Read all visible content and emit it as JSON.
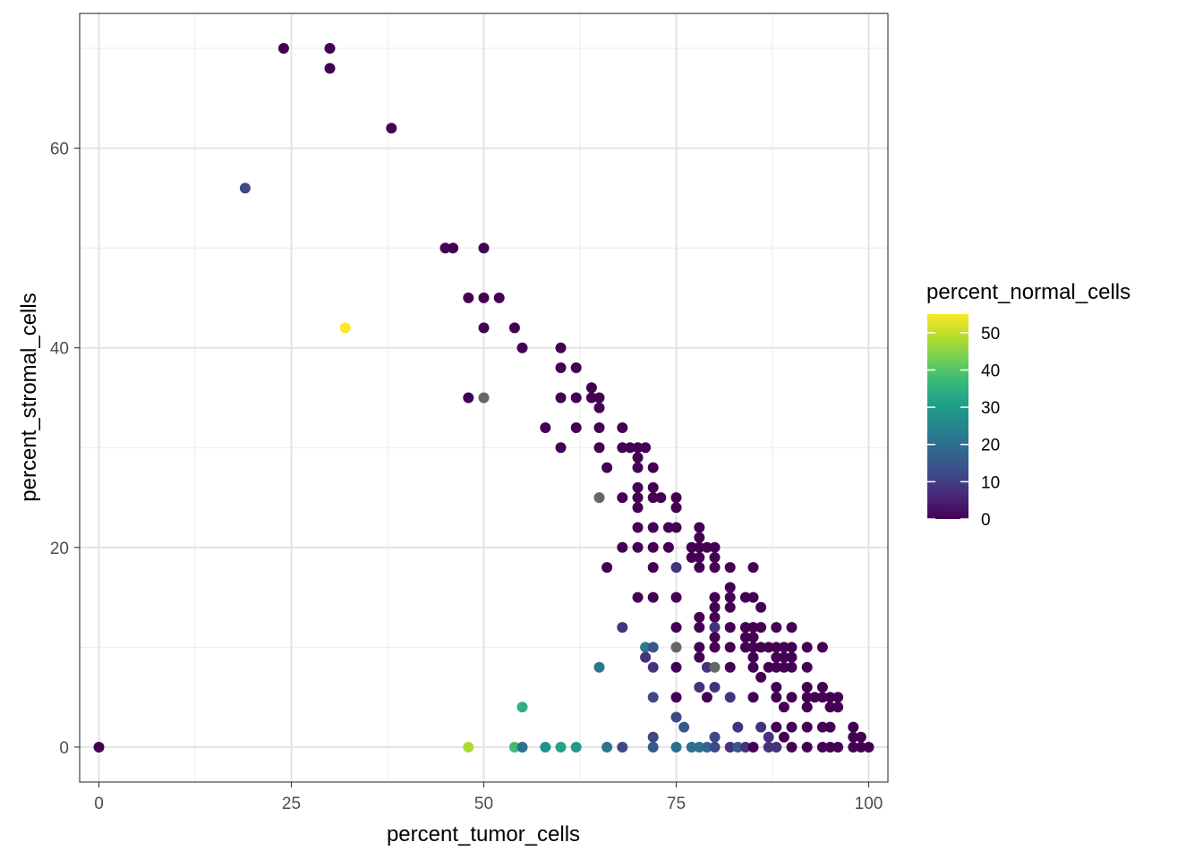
{
  "chart_data": {
    "type": "scatter",
    "title": "",
    "xlabel": "percent_tumor_cells",
    "ylabel": "percent_stromal_cells",
    "xlim": [
      -2.5,
      102.5
    ],
    "ylim": [
      -3.5,
      73.5
    ],
    "x_ticks": [
      0,
      25,
      50,
      75,
      100
    ],
    "y_ticks": [
      0,
      20,
      40,
      60
    ],
    "grid": true,
    "legend": {
      "title": "percent_normal_cells",
      "placement": "right",
      "range": [
        0,
        55
      ],
      "ticks": [
        0,
        10,
        20,
        30,
        40,
        50
      ],
      "na_color": "#666666"
    },
    "color_scale": [
      "#440154",
      "#482878",
      "#3e4a89",
      "#31688e",
      "#26828e",
      "#1f9e89",
      "#35b779",
      "#6ece58",
      "#b5de2b",
      "#fde725"
    ],
    "points": [
      [
        0,
        0,
        0
      ],
      [
        24,
        70,
        0
      ],
      [
        30,
        70,
        0
      ],
      [
        30,
        68,
        0
      ],
      [
        38,
        62,
        0
      ],
      [
        19,
        56,
        12
      ],
      [
        45,
        50,
        0
      ],
      [
        46,
        50,
        0
      ],
      [
        50,
        50,
        0
      ],
      [
        48,
        45,
        0
      ],
      [
        50,
        45,
        0
      ],
      [
        52,
        45,
        0
      ],
      [
        32,
        42,
        55
      ],
      [
        50,
        42,
        0
      ],
      [
        54,
        42,
        0
      ],
      [
        55,
        40,
        0
      ],
      [
        60,
        40,
        0
      ],
      [
        60,
        38,
        0
      ],
      [
        62,
        38,
        0
      ],
      [
        64,
        36,
        0
      ],
      [
        48,
        35,
        0
      ],
      [
        50,
        35,
        null
      ],
      [
        60,
        35,
        0
      ],
      [
        62,
        35,
        0
      ],
      [
        64,
        35,
        0
      ],
      [
        65,
        35,
        0
      ],
      [
        65,
        34,
        0
      ],
      [
        58,
        32,
        0
      ],
      [
        62,
        32,
        0
      ],
      [
        65,
        32,
        0
      ],
      [
        68,
        32,
        0
      ],
      [
        60,
        30,
        0
      ],
      [
        65,
        30,
        0
      ],
      [
        68,
        30,
        0
      ],
      [
        69,
        30,
        0
      ],
      [
        70,
        30,
        0
      ],
      [
        71,
        30,
        0
      ],
      [
        70,
        29,
        0
      ],
      [
        66,
        28,
        0
      ],
      [
        70,
        28,
        0
      ],
      [
        72,
        28,
        0
      ],
      [
        70,
        26,
        0
      ],
      [
        72,
        26,
        0
      ],
      [
        65,
        25,
        null
      ],
      [
        68,
        25,
        0
      ],
      [
        70,
        25,
        0
      ],
      [
        72,
        25,
        0
      ],
      [
        73,
        25,
        0
      ],
      [
        75,
        25,
        0
      ],
      [
        70,
        24,
        0
      ],
      [
        75,
        24,
        0
      ],
      [
        70,
        22,
        0
      ],
      [
        72,
        22,
        0
      ],
      [
        74,
        22,
        0
      ],
      [
        75,
        22,
        0
      ],
      [
        78,
        22,
        0
      ],
      [
        78,
        21,
        0
      ],
      [
        68,
        20,
        0
      ],
      [
        70,
        20,
        0
      ],
      [
        72,
        20,
        0
      ],
      [
        74,
        20,
        0
      ],
      [
        77,
        20,
        0
      ],
      [
        78,
        20,
        0
      ],
      [
        79,
        20,
        0
      ],
      [
        80,
        20,
        0
      ],
      [
        77,
        19,
        0
      ],
      [
        78,
        19,
        0
      ],
      [
        80,
        19,
        0
      ],
      [
        66,
        18,
        0
      ],
      [
        72,
        18,
        0
      ],
      [
        75,
        18,
        8
      ],
      [
        78,
        18,
        0
      ],
      [
        80,
        18,
        0
      ],
      [
        82,
        18,
        0
      ],
      [
        85,
        18,
        0
      ],
      [
        82,
        16,
        0
      ],
      [
        70,
        15,
        0
      ],
      [
        72,
        15,
        0
      ],
      [
        75,
        15,
        0
      ],
      [
        80,
        15,
        0
      ],
      [
        82,
        15,
        0
      ],
      [
        84,
        15,
        0
      ],
      [
        85,
        15,
        0
      ],
      [
        80,
        14,
        0
      ],
      [
        82,
        14,
        0
      ],
      [
        86,
        14,
        0
      ],
      [
        78,
        13,
        0
      ],
      [
        80,
        13,
        0
      ],
      [
        68,
        12,
        8
      ],
      [
        75,
        12,
        0
      ],
      [
        78,
        12,
        0
      ],
      [
        80,
        12,
        8
      ],
      [
        82,
        12,
        0
      ],
      [
        84,
        12,
        0
      ],
      [
        85,
        12,
        0
      ],
      [
        86,
        12,
        0
      ],
      [
        88,
        12,
        0
      ],
      [
        90,
        12,
        0
      ],
      [
        80,
        11,
        0
      ],
      [
        84,
        11,
        0
      ],
      [
        85,
        11,
        0
      ],
      [
        71,
        10,
        22
      ],
      [
        72,
        10,
        15
      ],
      [
        75,
        10,
        null
      ],
      [
        78,
        10,
        0
      ],
      [
        80,
        10,
        0
      ],
      [
        82,
        10,
        0
      ],
      [
        84,
        10,
        0
      ],
      [
        85,
        10,
        0
      ],
      [
        86,
        10,
        0
      ],
      [
        87,
        10,
        0
      ],
      [
        88,
        10,
        0
      ],
      [
        89,
        10,
        0
      ],
      [
        90,
        10,
        0
      ],
      [
        92,
        10,
        0
      ],
      [
        94,
        10,
        0
      ],
      [
        71,
        9,
        8
      ],
      [
        78,
        9,
        0
      ],
      [
        85,
        9,
        0
      ],
      [
        88,
        9,
        0
      ],
      [
        89,
        9,
        0
      ],
      [
        90,
        9,
        0
      ],
      [
        65,
        8,
        22
      ],
      [
        72,
        8,
        8
      ],
      [
        75,
        8,
        0
      ],
      [
        79,
        8,
        8
      ],
      [
        80,
        8,
        null
      ],
      [
        82,
        8,
        0
      ],
      [
        85,
        8,
        0
      ],
      [
        87,
        8,
        0
      ],
      [
        88,
        8,
        0
      ],
      [
        89,
        8,
        0
      ],
      [
        90,
        8,
        0
      ],
      [
        92,
        8,
        0
      ],
      [
        86,
        7,
        0
      ],
      [
        78,
        6,
        8
      ],
      [
        80,
        6,
        8
      ],
      [
        88,
        6,
        0
      ],
      [
        92,
        6,
        0
      ],
      [
        94,
        6,
        0
      ],
      [
        55,
        4,
        35
      ],
      [
        72,
        5,
        12
      ],
      [
        75,
        5,
        0
      ],
      [
        79,
        5,
        0
      ],
      [
        82,
        5,
        8
      ],
      [
        85,
        5,
        0
      ],
      [
        88,
        5,
        0
      ],
      [
        90,
        5,
        0
      ],
      [
        92,
        5,
        0
      ],
      [
        93,
        5,
        0
      ],
      [
        94,
        5,
        0
      ],
      [
        95,
        5,
        0
      ],
      [
        96,
        5,
        0
      ],
      [
        89,
        4,
        0
      ],
      [
        92,
        4,
        0
      ],
      [
        95,
        4,
        0
      ],
      [
        96,
        4,
        0
      ],
      [
        75,
        3,
        12
      ],
      [
        76,
        2,
        15
      ],
      [
        83,
        2,
        8
      ],
      [
        86,
        2,
        8
      ],
      [
        88,
        2,
        0
      ],
      [
        90,
        2,
        0
      ],
      [
        92,
        2,
        0
      ],
      [
        94,
        2,
        0
      ],
      [
        95,
        2,
        0
      ],
      [
        98,
        2,
        0
      ],
      [
        72,
        1,
        12
      ],
      [
        80,
        1,
        12
      ],
      [
        87,
        1,
        8
      ],
      [
        89,
        1,
        0
      ],
      [
        98,
        1,
        0
      ],
      [
        99,
        1,
        0
      ],
      [
        48,
        0,
        48
      ],
      [
        54,
        0,
        38
      ],
      [
        55,
        0,
        20
      ],
      [
        58,
        0,
        28
      ],
      [
        60,
        0,
        32
      ],
      [
        62,
        0,
        30
      ],
      [
        66,
        0,
        22
      ],
      [
        68,
        0,
        12
      ],
      [
        72,
        0,
        15
      ],
      [
        75,
        0,
        20
      ],
      [
        77,
        0,
        20
      ],
      [
        78,
        0,
        20
      ],
      [
        79,
        0,
        18
      ],
      [
        80,
        0,
        12
      ],
      [
        82,
        0,
        8
      ],
      [
        83,
        0,
        15
      ],
      [
        84,
        0,
        8
      ],
      [
        85,
        0,
        0
      ],
      [
        87,
        0,
        8
      ],
      [
        88,
        0,
        8
      ],
      [
        90,
        0,
        0
      ],
      [
        92,
        0,
        0
      ],
      [
        94,
        0,
        0
      ],
      [
        95,
        0,
        0
      ],
      [
        96,
        0,
        0
      ],
      [
        98,
        0,
        0
      ],
      [
        99,
        0,
        0
      ],
      [
        100,
        0,
        0
      ]
    ]
  }
}
